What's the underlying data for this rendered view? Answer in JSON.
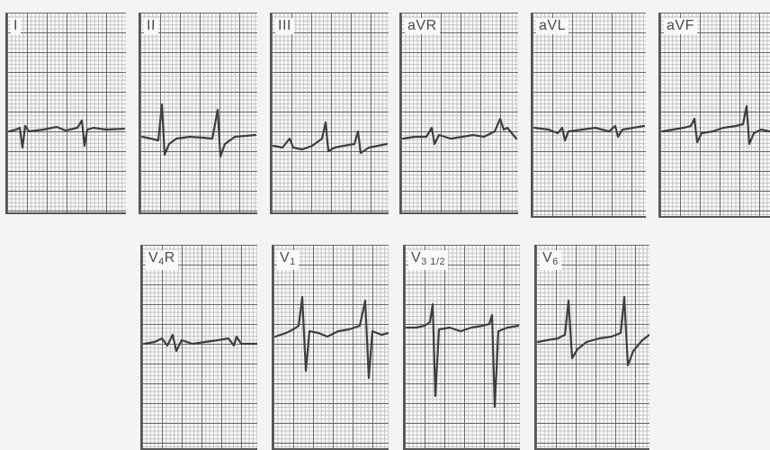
{
  "leads_row1": [
    {
      "id": "I",
      "label": "I"
    },
    {
      "id": "II",
      "label": "II"
    },
    {
      "id": "III",
      "label": "III"
    },
    {
      "id": "aVR",
      "label": "aVR"
    },
    {
      "id": "aVL",
      "label": "aVL"
    },
    {
      "id": "aVF",
      "label": "aVF"
    }
  ],
  "leads_row2": [
    {
      "id": "V4R",
      "label": "V",
      "sub": "4",
      "suffix": "R"
    },
    {
      "id": "V1",
      "label": "V",
      "sub": "1",
      "suffix": ""
    },
    {
      "id": "V3half",
      "label": "V",
      "sub": "3 1/2",
      "suffix": ""
    },
    {
      "id": "V6",
      "label": "V",
      "sub": "6",
      "suffix": ""
    }
  ]
}
